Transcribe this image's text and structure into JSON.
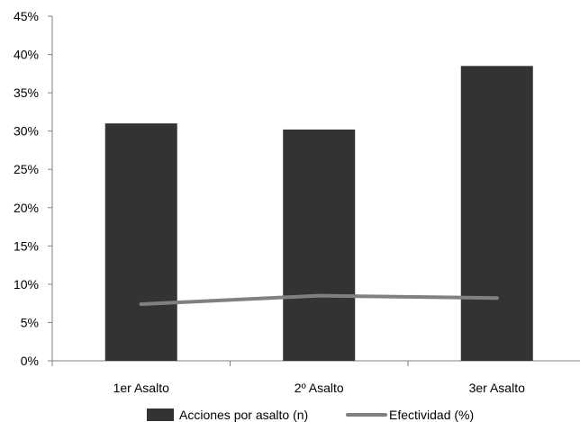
{
  "chart_data": {
    "type": "bar",
    "categories": [
      "1er Asalto",
      "2º Asalto",
      "3er Asalto"
    ],
    "series": [
      {
        "name": "Acciones por asalto (n)",
        "kind": "bar",
        "color": "#333333",
        "values": [
          31.0,
          30.2,
          38.5
        ]
      },
      {
        "name": "Efectividad (%)",
        "kind": "line",
        "color": "#808080",
        "values": [
          7.4,
          8.5,
          8.2
        ]
      }
    ],
    "ylim": [
      0,
      45
    ],
    "yticks": [
      "0%",
      "5%",
      "10%",
      "15%",
      "20%",
      "25%",
      "30%",
      "35%",
      "40%",
      "45%"
    ],
    "ytick_values": [
      0,
      5,
      10,
      15,
      20,
      25,
      30,
      35,
      40,
      45
    ],
    "grid": false,
    "legend_position": "bottom"
  }
}
